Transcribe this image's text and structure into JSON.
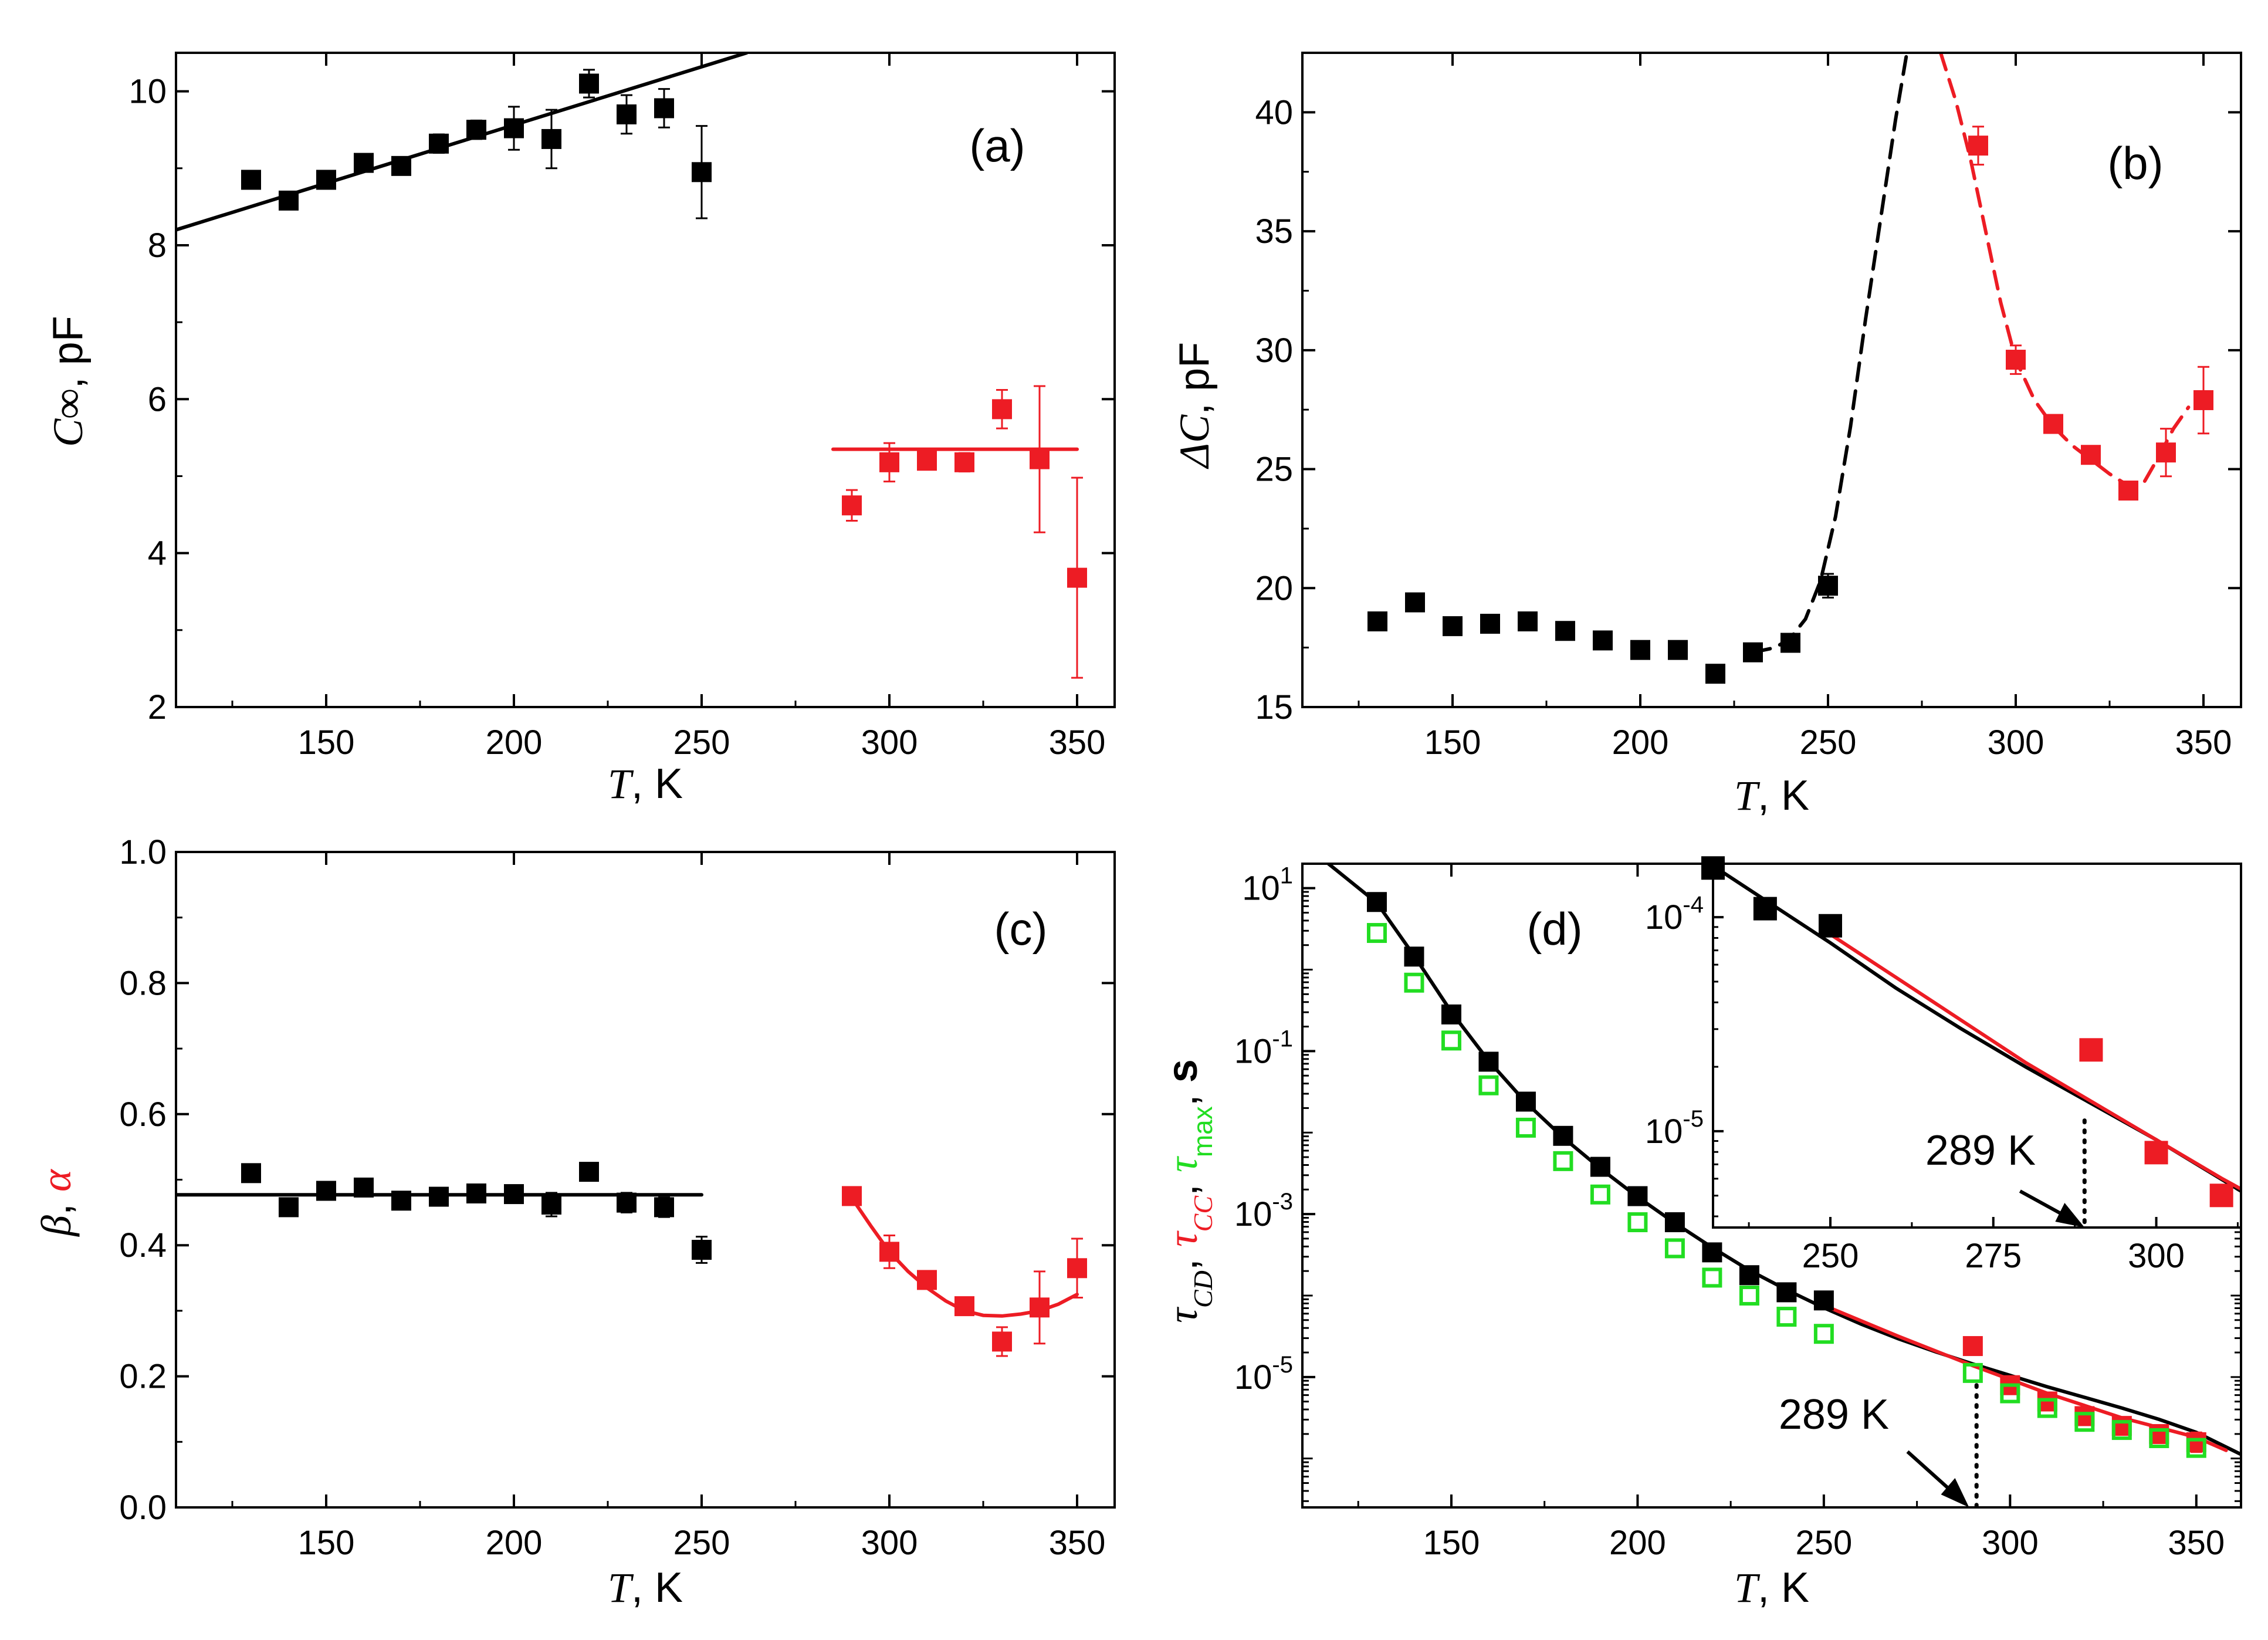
{
  "colors": {
    "black": "#000000",
    "red": "#ed1c24",
    "green": "#22dd22"
  },
  "chart_data": [
    {
      "id": "a",
      "type": "scatter",
      "panel_label": "(a)",
      "xlabel_var": "T",
      "xlabel_unit": ", K",
      "ylabel_var": "C",
      "ylabel_sub": "∞",
      "ylabel_unit": ", pF",
      "xlim": [
        110,
        360
      ],
      "ylim": [
        2,
        10.5
      ],
      "xticks": [
        150,
        200,
        250,
        300,
        350
      ],
      "yticks": [
        2,
        4,
        6,
        8,
        10
      ],
      "series": [
        {
          "name": "black",
          "color": "black",
          "x": [
            130,
            140,
            150,
            160,
            170,
            180,
            190,
            200,
            210,
            220,
            230,
            240,
            250
          ],
          "y": [
            8.85,
            8.58,
            8.85,
            9.07,
            9.03,
            9.32,
            9.5,
            9.52,
            9.38,
            10.1,
            9.7,
            9.78,
            8.95
          ],
          "err": [
            0.06,
            0.06,
            0.06,
            0.06,
            0.06,
            0.12,
            0.12,
            0.28,
            0.38,
            0.18,
            0.25,
            0.25,
            0.6
          ]
        },
        {
          "name": "red",
          "color": "red",
          "x": [
            290,
            300,
            310,
            320,
            330,
            340,
            350
          ],
          "y": [
            4.62,
            5.18,
            5.2,
            5.18,
            5.87,
            5.22,
            3.68
          ],
          "err": [
            0.2,
            0.25,
            0.1,
            0.12,
            0.25,
            0.95,
            1.3
          ]
        }
      ],
      "lines": [
        {
          "color": "black",
          "style": "solid",
          "x": [
            110,
            262
          ],
          "y": [
            8.2,
            10.5
          ]
        },
        {
          "color": "red",
          "style": "solid",
          "x": [
            285,
            350
          ],
          "y": [
            5.35,
            5.35
          ]
        }
      ]
    },
    {
      "id": "b",
      "type": "scatter",
      "panel_label": "(b)",
      "xlabel_var": "T",
      "xlabel_unit": ", K",
      "ylabel_var": "ΔC",
      "ylabel_unit": ", pF",
      "xlim": [
        110,
        360
      ],
      "ylim": [
        15,
        42.5
      ],
      "xticks": [
        150,
        200,
        250,
        300,
        350
      ],
      "yticks": [
        15,
        20,
        25,
        30,
        35,
        40
      ],
      "series": [
        {
          "name": "black",
          "color": "black",
          "x": [
            130,
            140,
            150,
            160,
            170,
            180,
            190,
            200,
            210,
            220,
            230,
            240,
            250
          ],
          "y": [
            18.6,
            19.4,
            18.4,
            18.5,
            18.6,
            18.2,
            17.8,
            17.4,
            17.4,
            16.4,
            17.3,
            17.7,
            20.1
          ],
          "err": [
            0.15,
            0.15,
            0.15,
            0.15,
            0.15,
            0.15,
            0.15,
            0.15,
            0.15,
            0.15,
            0.2,
            0.2,
            0.5
          ]
        },
        {
          "name": "red",
          "color": "red",
          "x": [
            290,
            300,
            310,
            320,
            330,
            340,
            350
          ],
          "y": [
            38.6,
            29.6,
            26.9,
            25.6,
            24.1,
            25.7,
            27.9
          ],
          "err": [
            0.8,
            0.6,
            0.25,
            0.2,
            0.3,
            1.0,
            1.4
          ]
        }
      ],
      "lines": [
        {
          "color": "black",
          "style": "dashed",
          "x": [
            230,
            236,
            240,
            244,
            248,
            252,
            256,
            260,
            264,
            268,
            271
          ],
          "y": [
            17.3,
            17.5,
            17.9,
            18.7,
            20.3,
            23.0,
            26.8,
            31.3,
            35.5,
            39.7,
            42.5
          ]
        },
        {
          "color": "red",
          "style": "dashed",
          "x": [
            280,
            284,
            288,
            292,
            296,
            300,
            305,
            310,
            315,
            320,
            325,
            330,
            334,
            338,
            342,
            346
          ],
          "y": [
            42.5,
            40.5,
            38.0,
            35.0,
            32.0,
            29.6,
            27.9,
            26.8,
            26.0,
            25.4,
            24.8,
            24.3,
            24.4,
            25.5,
            26.7,
            27.6
          ]
        }
      ]
    },
    {
      "id": "c",
      "type": "scatter",
      "panel_label": "(c)",
      "xlabel_var": "T",
      "xlabel_unit": ", K",
      "ylabel_beta": "β",
      "ylabel_sep": ", ",
      "ylabel_alpha": "α",
      "xlim": [
        110,
        360
      ],
      "ylim": [
        0,
        1.0
      ],
      "xticks": [
        150,
        200,
        250,
        300,
        350
      ],
      "yticks": [
        0.0,
        0.2,
        0.4,
        0.6,
        0.8,
        1.0
      ],
      "ytick_labels": [
        "0.0",
        "0.2",
        "0.4",
        "0.6",
        "0.8",
        "1.0"
      ],
      "series": [
        {
          "name": "black",
          "color": "black",
          "x": [
            130,
            140,
            150,
            160,
            170,
            180,
            190,
            200,
            210,
            220,
            230,
            240,
            250
          ],
          "y": [
            0.51,
            0.458,
            0.483,
            0.488,
            0.468,
            0.474,
            0.479,
            0.478,
            0.462,
            0.512,
            0.465,
            0.458,
            0.393
          ],
          "err": [
            0.006,
            0.006,
            0.006,
            0.006,
            0.006,
            0.006,
            0.006,
            0.01,
            0.018,
            0.01,
            0.015,
            0.015,
            0.02
          ]
        },
        {
          "name": "red",
          "color": "red",
          "x": [
            290,
            300,
            310,
            320,
            330,
            340,
            350
          ],
          "y": [
            0.475,
            0.39,
            0.347,
            0.307,
            0.253,
            0.305,
            0.365
          ],
          "err": [
            0.006,
            0.025,
            0.008,
            0.008,
            0.022,
            0.055,
            0.045
          ]
        }
      ],
      "lines": [
        {
          "color": "black",
          "style": "solid",
          "x": [
            110,
            250
          ],
          "y": [
            0.477,
            0.477
          ]
        },
        {
          "color": "red",
          "style": "solid",
          "x": [
            290,
            295,
            300,
            305,
            310,
            315,
            320,
            325,
            330,
            335,
            340,
            345,
            350
          ],
          "y": [
            0.472,
            0.43,
            0.39,
            0.36,
            0.335,
            0.315,
            0.3,
            0.293,
            0.292,
            0.295,
            0.3,
            0.31,
            0.325
          ]
        }
      ]
    },
    {
      "id": "d",
      "type": "scatter",
      "yscale": "log",
      "panel_label": "(d)",
      "xlabel_var": "T",
      "xlabel_unit": ", K",
      "ylabel_tau": "τ",
      "ylabel_sub_cd": "CD",
      "ylabel_sub_cc": "CC",
      "ylabel_sub_max": "max",
      "ylabel_unit": "s",
      "xlim": [
        110,
        362
      ],
      "ylim_log10": [
        -6.6,
        1.3
      ],
      "xticks": [
        150,
        200,
        250,
        300,
        350
      ],
      "yticks_log10": [
        1,
        -1,
        -3,
        -5
      ],
      "ytick_base": "10",
      "ytick_exps": [
        "1",
        "-1",
        "-3",
        "-5"
      ],
      "annotation": "289 K",
      "annotation_x": 289,
      "series": [
        {
          "name": "tau_CD",
          "color": "black",
          "marker": "filled",
          "x": [
            130,
            140,
            150,
            160,
            170,
            180,
            190,
            200,
            210,
            220,
            230,
            240,
            250
          ],
          "log10y": [
            0.83,
            0.16,
            -0.55,
            -1.13,
            -1.62,
            -2.04,
            -2.42,
            -2.78,
            -3.1,
            -3.47,
            -3.75,
            -3.96,
            -4.06
          ]
        },
        {
          "name": "tau_CC",
          "color": "red",
          "marker": "filled",
          "x": [
            290,
            300,
            310,
            320,
            330,
            340,
            350
          ],
          "log10y": [
            -4.62,
            -5.1,
            -5.3,
            -5.48,
            -5.6,
            -5.7,
            -5.8
          ],
          "err": [
            0.05,
            0.04,
            0.04,
            0.04,
            0.05,
            0.1,
            0.12
          ]
        },
        {
          "name": "tau_max",
          "color": "green",
          "marker": "open",
          "x": [
            130,
            140,
            150,
            160,
            170,
            180,
            190,
            200,
            210,
            220,
            230,
            240,
            250,
            290,
            300,
            310,
            320,
            330,
            340,
            350
          ],
          "log10y": [
            0.45,
            -0.16,
            -0.87,
            -1.42,
            -1.94,
            -2.35,
            -2.76,
            -3.1,
            -3.42,
            -3.78,
            -4.0,
            -4.26,
            -4.47,
            -4.95,
            -5.2,
            -5.38,
            -5.55,
            -5.65,
            -5.75,
            -5.87
          ]
        }
      ],
      "lines": [
        {
          "color": "black",
          "style": "solid",
          "x": [
            117,
            130,
            140,
            150,
            160,
            170,
            180,
            190,
            200,
            210,
            220,
            230,
            240,
            250,
            260,
            270,
            280,
            290,
            300,
            310,
            320,
            330,
            340,
            350,
            362
          ],
          "log10y": [
            1.3,
            0.82,
            0.17,
            -0.52,
            -1.12,
            -1.63,
            -2.06,
            -2.44,
            -2.79,
            -3.11,
            -3.41,
            -3.69,
            -3.93,
            -4.15,
            -4.35,
            -4.53,
            -4.69,
            -4.84,
            -4.98,
            -5.12,
            -5.25,
            -5.38,
            -5.52,
            -5.68,
            -5.95
          ]
        },
        {
          "color": "red",
          "style": "solid",
          "x": [
            250,
            260,
            270,
            280,
            290,
            300,
            310,
            320,
            330,
            340,
            350,
            358
          ],
          "log10y": [
            -4.12,
            -4.31,
            -4.5,
            -4.68,
            -4.86,
            -5.03,
            -5.2,
            -5.35,
            -5.5,
            -5.62,
            -5.74,
            -5.9
          ]
        },
        {
          "color": "black",
          "style": "dotted",
          "x": [
            291,
            291
          ],
          "log10y": [
            -5.1,
            -6.6
          ]
        }
      ],
      "inset": {
        "xlim": [
          232,
          313
        ],
        "ylim_log10": [
          -5.45,
          -3.75
        ],
        "xticks": [
          250,
          275,
          300
        ],
        "yticks_log10": [
          -4,
          -5
        ],
        "ytick_exps": [
          "-4",
          "-5"
        ],
        "annotation": "289 K",
        "annotation_x": 289,
        "series": [
          {
            "name": "tau_CD_inset",
            "color": "black",
            "x": [
              232,
              240,
              250
            ],
            "log10y": [
              -3.77,
              -3.96,
              -4.04
            ]
          },
          {
            "name": "tau_CC_inset",
            "color": "red",
            "x": [
              290,
              300,
              310
            ],
            "log10y": [
              -4.62,
              -5.1,
              -5.3
            ],
            "err": [
              0.02,
              0.04,
              0.03
            ]
          }
        ],
        "lines": [
          {
            "color": "black",
            "style": "solid",
            "x": [
              232,
              240,
              250,
              260,
              270,
              280,
              290,
              300,
              313
            ],
            "log10y": [
              -3.76,
              -3.92,
              -4.12,
              -4.33,
              -4.52,
              -4.7,
              -4.87,
              -5.04,
              -5.28
            ]
          },
          {
            "color": "red",
            "style": "solid",
            "x": [
              250,
              260,
              270,
              280,
              290,
              300,
              310,
              313
            ],
            "log10y": [
              -4.08,
              -4.28,
              -4.48,
              -4.68,
              -4.86,
              -5.04,
              -5.22,
              -5.27
            ]
          },
          {
            "color": "black",
            "style": "dotted",
            "x": [
              289,
              289
            ],
            "log10y": [
              -4.95,
              -5.45
            ]
          }
        ]
      }
    }
  ]
}
